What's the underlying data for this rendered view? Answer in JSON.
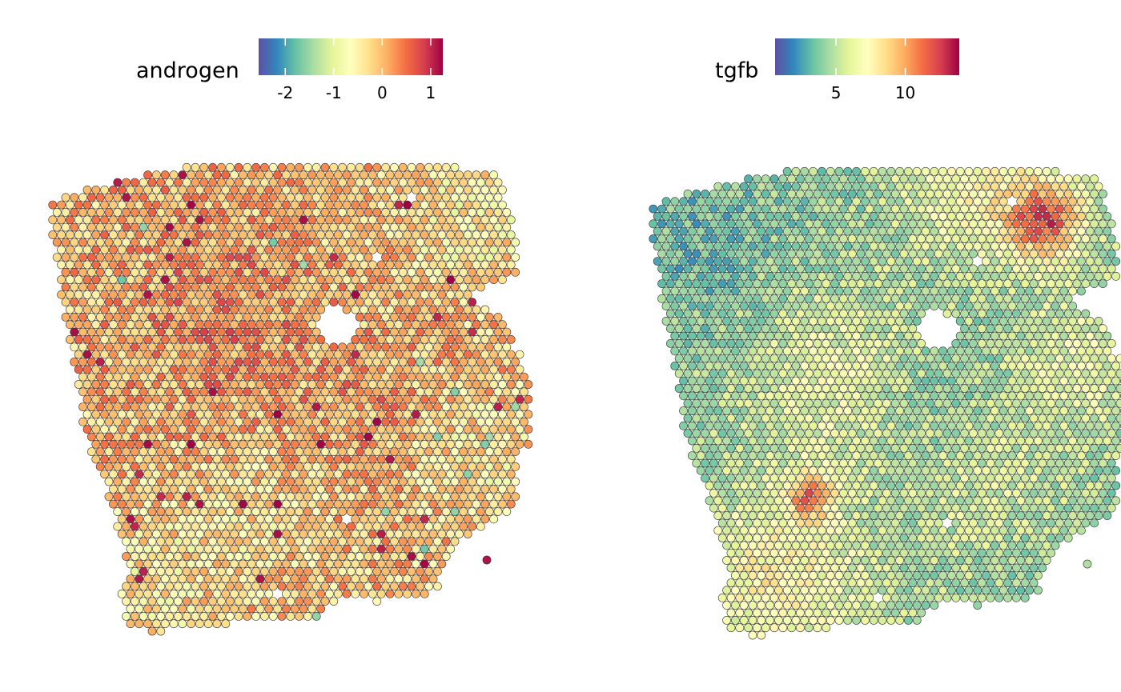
{
  "chart_data": [
    {
      "type": "scatter",
      "subtype": "spatial-spot-map",
      "legend": {
        "title": "androgen",
        "position": "top",
        "ticks": [
          "-2",
          "-1",
          "0",
          "1"
        ],
        "tick_values": [
          -2,
          -1,
          0,
          1
        ],
        "range": [
          -2.55,
          1.25
        ]
      },
      "palette": "Spectral (reversed): low = #5e4fa2 blue, high = #9e0142 red",
      "description_of_pattern": "mostly 0 to 1 (orange) with yellow/green patches; few dark red hot spots",
      "value_range_estimate": [
        -2.5,
        1.2
      ]
    },
    {
      "type": "scatter",
      "subtype": "spatial-spot-map",
      "legend": {
        "title": "tgfb",
        "position": "top",
        "ticks": [
          "5",
          "10"
        ],
        "tick_values": [
          5,
          10
        ],
        "range": [
          0.6,
          13.9
        ]
      },
      "palette": "Spectral (reversed): low = #5e4fa2 blue, high = #9e0142 red",
      "description_of_pattern": "mostly 2 to 6 (blue-green), yellow bands, hot spot in upper right",
      "value_range_estimate": [
        0.8,
        13.5
      ]
    }
  ],
  "colors": {
    "spectral_stops": [
      "#5e4fa2",
      "#3288bd",
      "#66c2a5",
      "#abdda4",
      "#e6f598",
      "#ffffbf",
      "#fee08b",
      "#fdae61",
      "#f46d43",
      "#d53e4f",
      "#9e0142"
    ],
    "spot_stroke": "#333333"
  }
}
